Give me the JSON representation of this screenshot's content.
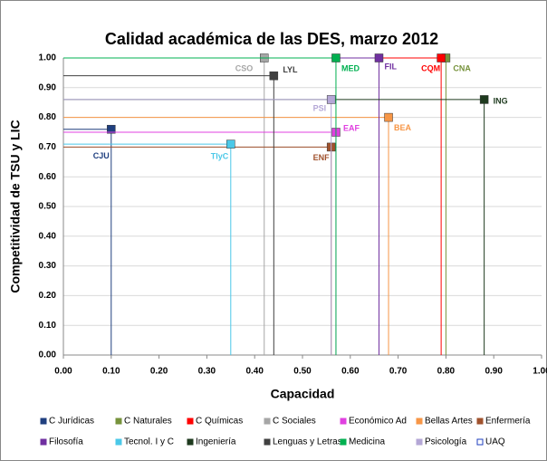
{
  "chart_data": {
    "type": "scatter",
    "title": "Calidad académica de las DES, marzo 2012",
    "xlabel": "Capacidad",
    "ylabel": "Competitividad de TSU y LIC",
    "xlim": [
      0,
      1
    ],
    "ylim": [
      0,
      1
    ],
    "xticks": [
      {
        "value": 0,
        "label": "0.00"
      },
      {
        "value": 0.1,
        "label": "0.10"
      },
      {
        "value": 0.2,
        "label": "0.20"
      },
      {
        "value": 0.3,
        "label": "0.30"
      },
      {
        "value": 0.4,
        "label": "0.40"
      },
      {
        "value": 0.5,
        "label": "0.50"
      },
      {
        "value": 0.6,
        "label": "0.60"
      },
      {
        "value": 0.7,
        "label": "0.70"
      },
      {
        "value": 0.8,
        "label": "0.80"
      },
      {
        "value": 0.9,
        "label": "0.90"
      },
      {
        "value": 1,
        "label": "1.00"
      }
    ],
    "yticks": [
      {
        "value": 0,
        "label": "0.00"
      },
      {
        "value": 0.1,
        "label": "0.10"
      },
      {
        "value": 0.2,
        "label": "0.20"
      },
      {
        "value": 0.3,
        "label": "0.30"
      },
      {
        "value": 0.4,
        "label": "0.40"
      },
      {
        "value": 0.5,
        "label": "0.50"
      },
      {
        "value": 0.6,
        "label": "0.60"
      },
      {
        "value": 0.7,
        "label": "0.70"
      },
      {
        "value": 0.8,
        "label": "0.80"
      },
      {
        "value": 0.9,
        "label": "0.90"
      },
      {
        "value": 1,
        "label": "1.00"
      }
    ],
    "grid": true,
    "legend": "bottom",
    "series": [
      {
        "name": "C Jurídicas",
        "label": "CJU",
        "color": "#1f3f7f",
        "x": [
          0.1
        ],
        "y": [
          0.76
        ]
      },
      {
        "name": "C Naturales",
        "label": "CNA",
        "color": "#77933c",
        "x": [
          0.8
        ],
        "y": [
          1.0
        ]
      },
      {
        "name": "C Químicas",
        "label": "CQM",
        "color": "#ff0000",
        "x": [
          0.79
        ],
        "y": [
          1.0
        ]
      },
      {
        "name": "C Sociales",
        "label": "CSO",
        "color": "#a6a6a6",
        "x": [
          0.42
        ],
        "y": [
          1.0
        ]
      },
      {
        "name": "Económico Ad",
        "label": "EAF",
        "color": "#e040e0",
        "x": [
          0.57
        ],
        "y": [
          0.75
        ]
      },
      {
        "name": "Bellas Artes",
        "label": "BEA",
        "color": "#f79646",
        "x": [
          0.68
        ],
        "y": [
          0.8
        ]
      },
      {
        "name": "Enfermería",
        "label": "ENF",
        "color": "#a0522d",
        "x": [
          0.56
        ],
        "y": [
          0.7
        ]
      },
      {
        "name": "Filosofía",
        "label": "FIL",
        "color": "#7030a0",
        "x": [
          0.66
        ],
        "y": [
          1.0
        ]
      },
      {
        "name": "Tecnol. I y C",
        "label": "TIyC",
        "color": "#4bc8e8",
        "x": [
          0.35
        ],
        "y": [
          0.71
        ]
      },
      {
        "name": "Ingeniería",
        "label": "ING",
        "color": "#1e3a1e",
        "x": [
          0.88
        ],
        "y": [
          0.86
        ]
      },
      {
        "name": "Lenguas y Letras",
        "label": "LYL",
        "color": "#404040",
        "x": [
          0.44
        ],
        "y": [
          0.94
        ]
      },
      {
        "name": "Medicina",
        "label": "MED",
        "color": "#00b050",
        "x": [
          0.57
        ],
        "y": [
          1.0
        ]
      },
      {
        "name": "Psicología",
        "label": "PSI",
        "color": "#b4a7d6",
        "x": [
          0.56
        ],
        "y": [
          0.86
        ]
      },
      {
        "name": "UAQ",
        "color": "#1f3fbf",
        "x": [
          null
        ],
        "y": [
          null
        ]
      }
    ]
  }
}
